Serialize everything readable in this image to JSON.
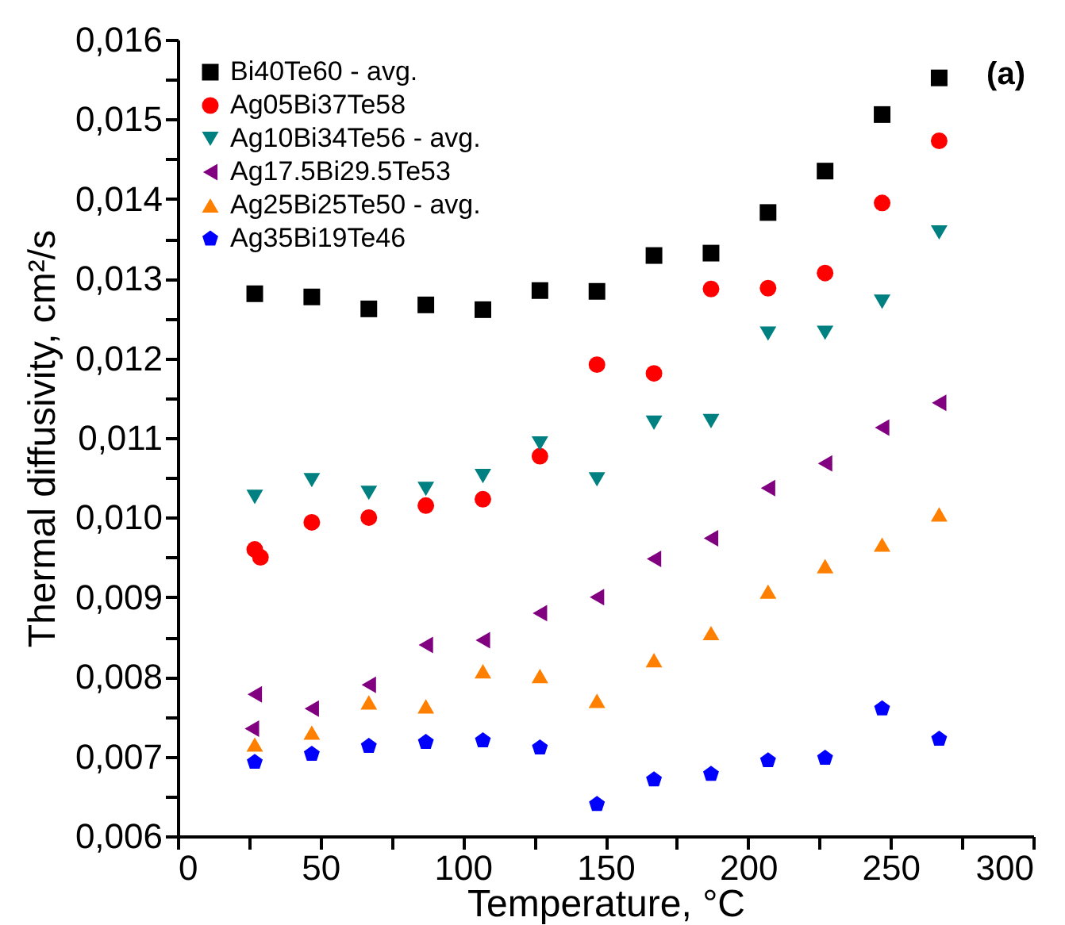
{
  "chart_data": {
    "type": "scatter",
    "xlabel": "Temperature, °C",
    "ylabel": "Thermal diffusivity, cm²/s",
    "annotations": [
      "(a)"
    ],
    "xlim": [
      0,
      300
    ],
    "xticks": [
      0,
      {
        "value": 25,
        "label": null
      },
      50,
      {
        "value": 75,
        "label": null
      },
      100,
      {
        "value": 125,
        "label": null
      },
      150,
      {
        "value": 175,
        "label": null
      },
      200,
      {
        "value": 225,
        "label": null
      },
      250,
      {
        "value": 275,
        "label": null
      },
      300
    ],
    "ylim": [
      0.006,
      0.016
    ],
    "yticks": [
      {
        "value": 0.006,
        "label": "0,006"
      },
      {
        "value": 0.0065,
        "label": null
      },
      {
        "value": 0.007,
        "label": "0,007"
      },
      {
        "value": 0.0075,
        "label": null
      },
      {
        "value": 0.008,
        "label": "0,008"
      },
      {
        "value": 0.0085,
        "label": null
      },
      {
        "value": 0.009,
        "label": "0,009"
      },
      {
        "value": 0.0095,
        "label": null
      },
      {
        "value": 0.01,
        "label": "0,010"
      },
      {
        "value": 0.0105,
        "label": null
      },
      {
        "value": 0.011,
        "label": "0,011"
      },
      {
        "value": 0.0115,
        "label": null
      },
      {
        "value": 0.012,
        "label": "0,012"
      },
      {
        "value": 0.0125,
        "label": null
      },
      {
        "value": 0.013,
        "label": "0,013"
      },
      {
        "value": 0.0135,
        "label": null
      },
      {
        "value": 0.014,
        "label": "0,014"
      },
      {
        "value": 0.0145,
        "label": null
      },
      {
        "value": 0.015,
        "label": "0,015"
      },
      {
        "value": 0.0155,
        "label": null
      },
      {
        "value": 0.016,
        "label": "0,016"
      }
    ],
    "grid": false,
    "legend": "top left",
    "series": [
      {
        "name": "Bi40Te60 - avg.",
        "color": "#000000",
        "marker": "square",
        "x": [
          27,
          47,
          67,
          87,
          107,
          127,
          147,
          167,
          187,
          207,
          227,
          247,
          267
        ],
        "values": [
          0.01281,
          0.01277,
          0.01262,
          0.01267,
          0.01261,
          0.01285,
          0.01284,
          0.01329,
          0.01332,
          0.01383,
          0.01435,
          0.01506,
          0.01552
        ]
      },
      {
        "name": "Ag05Bi37Te58",
        "color": "#ff0000",
        "marker": "circle",
        "x": [
          27,
          29,
          47,
          67,
          87,
          107,
          127,
          147,
          167,
          187,
          207,
          227,
          247,
          267
        ],
        "values": [
          0.0096,
          0.0095,
          0.00994,
          0.01,
          0.01015,
          0.01023,
          0.01077,
          0.01192,
          0.01181,
          0.01287,
          0.01288,
          0.01307,
          0.01395,
          0.01473
        ]
      },
      {
        "name": "Ag10Bi34Te56 - avg.",
        "color": "#008080",
        "marker": "triangle-down",
        "x": [
          27,
          47,
          67,
          87,
          107,
          127,
          147,
          167,
          187,
          207,
          227,
          247,
          267
        ],
        "values": [
          0.01026,
          0.01047,
          0.01031,
          0.01036,
          0.01052,
          0.01093,
          0.01048,
          0.01119,
          0.01121,
          0.01231,
          0.01232,
          0.01271,
          0.01358
        ]
      },
      {
        "name": "Ag17.5Bi29.5Te53",
        "color": "#800080",
        "marker": "triangle-left",
        "x": [
          27,
          26,
          47,
          67,
          87,
          107,
          127,
          147,
          167,
          187,
          207,
          227,
          247,
          267
        ],
        "values": [
          0.00778,
          0.00735,
          0.0076,
          0.0079,
          0.0084,
          0.00846,
          0.0088,
          0.009,
          0.00948,
          0.00974,
          0.01037,
          0.01068,
          0.01113,
          0.01144
        ]
      },
      {
        "name": "Ag25Bi25Te50 - avg.",
        "color": "#ff8000",
        "marker": "triangle",
        "x": [
          27,
          47,
          67,
          87,
          107,
          127,
          147,
          167,
          187,
          207,
          227,
          247,
          267
        ],
        "values": [
          0.00715,
          0.0073,
          0.00768,
          0.00763,
          0.00807,
          0.00801,
          0.0077,
          0.00821,
          0.00855,
          0.00907,
          0.00939,
          0.00966,
          0.01004
        ]
      },
      {
        "name": "Ag35Bi19Te46",
        "color": "#0000ff",
        "x": [
          27,
          47,
          67,
          87,
          107,
          127,
          147,
          167,
          187,
          207,
          227,
          247,
          267
        ],
        "values": [
          0.00693,
          0.00703,
          0.00713,
          0.00718,
          0.0072,
          0.00711,
          0.0064,
          0.00671,
          0.00678,
          0.00695,
          0.00698,
          0.0076,
          0.00722
        ]
      }
    ]
  }
}
